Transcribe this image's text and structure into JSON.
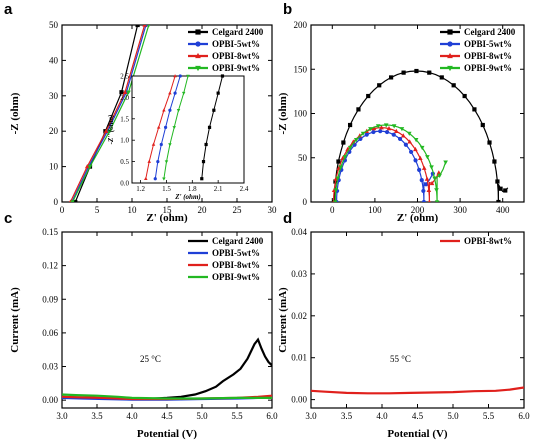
{
  "chart_data": [
    {
      "panel": "a",
      "type": "line",
      "xlabel": "Z' (ohm)",
      "ylabel": "-Z (ohm)",
      "xlim": [
        0,
        30
      ],
      "ylim": [
        0,
        50
      ],
      "xticks": [
        0,
        5,
        10,
        15,
        20,
        25,
        30
      ],
      "yticks": [
        0,
        10,
        20,
        30,
        40,
        50
      ],
      "legend": "top-right",
      "series": [
        {
          "name": "Celgard 2400",
          "color": "#000000",
          "marker": "square",
          "x": [
            1.9,
            4.0,
            6.2,
            8.5,
            10.8
          ],
          "y": [
            0,
            10,
            20,
            31,
            50
          ]
        },
        {
          "name": "OPBI-5wt%",
          "color": "#1f3fd6",
          "marker": "circle",
          "x": [
            1.4,
            3.8,
            6.5,
            9.2,
            12.0
          ],
          "y": [
            0,
            10,
            20,
            31,
            50
          ]
        },
        {
          "name": "OPBI-8wt%",
          "color": "#e0201c",
          "marker": "triangle-up",
          "x": [
            1.2,
            3.6,
            6.3,
            9.0,
            11.8
          ],
          "y": [
            0,
            10,
            20,
            31,
            50
          ]
        },
        {
          "name": "OPBI-9wt%",
          "color": "#22b822",
          "marker": "triangle-down",
          "x": [
            1.5,
            4.0,
            6.8,
            9.5,
            12.4
          ],
          "y": [
            0,
            10,
            20,
            31,
            50
          ]
        }
      ],
      "inset": {
        "xlabel": "Z' (ohm)",
        "ylabel": "-Z'' (ohm)",
        "xlim": [
          1.1,
          2.4
        ],
        "ylim": [
          0,
          2.5
        ],
        "xticks": [
          1.2,
          1.5,
          1.8,
          2.1,
          2.4
        ],
        "yticks": [
          0.0,
          0.5,
          1.0,
          1.5,
          2.0,
          2.5
        ],
        "series": [
          {
            "name": "Celgard 2400",
            "x": [
              1.91,
              1.93,
              1.96,
              2.0,
              2.05,
              2.1,
              2.15
            ],
            "y": [
              0.1,
              0.5,
              0.9,
              1.3,
              1.7,
              2.1,
              2.5
            ]
          },
          {
            "name": "OPBI-5wt%",
            "x": [
              1.37,
              1.4,
              1.44,
              1.49,
              1.54,
              1.6,
              1.66
            ],
            "y": [
              0.1,
              0.5,
              0.9,
              1.3,
              1.7,
              2.1,
              2.5
            ]
          },
          {
            "name": "OPBI-8wt%",
            "x": [
              1.26,
              1.3,
              1.35,
              1.41,
              1.47,
              1.54,
              1.6
            ],
            "y": [
              0.1,
              0.5,
              0.9,
              1.3,
              1.7,
              2.1,
              2.5
            ]
          },
          {
            "name": "OPBI-9wt%",
            "x": [
              1.47,
              1.5,
              1.54,
              1.59,
              1.64,
              1.7,
              1.75
            ],
            "y": [
              0.1,
              0.5,
              0.9,
              1.3,
              1.7,
              2.1,
              2.5
            ]
          }
        ]
      }
    },
    {
      "panel": "b",
      "type": "line",
      "xlabel": "Z' (ohm)",
      "ylabel": "-Z (ohm)",
      "xlim": [
        -50,
        450
      ],
      "ylim": [
        0,
        200
      ],
      "xticks": [
        0,
        100,
        200,
        300,
        400
      ],
      "yticks": [
        0,
        50,
        100,
        150,
        200
      ],
      "legend": "top-right",
      "series": [
        {
          "name": "Celgard 2400",
          "color": "#000000",
          "marker": "square",
          "arc": {
            "x0": 5,
            "x1": 390,
            "h": 148
          },
          "tail": {
            "x": [
              390,
              395,
              400,
              406,
              412
            ],
            "y": [
              20,
              15,
              12,
              13,
              16
            ]
          }
        },
        {
          "name": "OPBI-5wt%",
          "color": "#1f3fd6",
          "marker": "circle",
          "arc": {
            "x0": 10,
            "x1": 215,
            "h": 80
          },
          "tail": {
            "x": [
              215,
              220,
              228,
              236
            ],
            "y": [
              22,
              20,
              25,
              32
            ]
          }
        },
        {
          "name": "OPBI-8wt%",
          "color": "#e0201c",
          "marker": "triangle-up",
          "arc": {
            "x0": 3,
            "x1": 228,
            "h": 84
          },
          "tail": {
            "x": [
              228,
              234,
              242,
              250
            ],
            "y": [
              22,
              21,
              26,
              33
            ]
          }
        },
        {
          "name": "OPBI-9wt%",
          "color": "#22b822",
          "marker": "triangle-down",
          "arc": {
            "x0": 7,
            "x1": 246,
            "h": 87
          },
          "tail": {
            "x": [
              246,
              252,
              260,
              266
            ],
            "y": [
              28,
              30,
              37,
              45
            ]
          }
        }
      ]
    },
    {
      "panel": "c",
      "type": "line",
      "xlabel": "Potential (V)",
      "ylabel": "Current (mA)",
      "xlim": [
        3.0,
        6.0
      ],
      "ylim": [
        -0.007,
        0.15
      ],
      "xticks": [
        3.0,
        3.5,
        4.0,
        4.5,
        5.0,
        5.5,
        6.0
      ],
      "yticks": [
        0.0,
        0.03,
        0.06,
        0.09,
        0.12,
        0.15
      ],
      "legend": "top-right",
      "annotation": "25 °C",
      "series": [
        {
          "name": "Celgard 2400",
          "color": "#000000",
          "x": [
            3.0,
            3.3,
            3.6,
            3.9,
            4.2,
            4.5,
            4.7,
            4.9,
            5.05,
            5.2,
            5.3,
            5.45,
            5.55,
            5.65,
            5.75,
            5.8,
            5.85,
            5.9,
            5.95,
            6.0
          ],
          "y": [
            0.003,
            0.002,
            0.0015,
            0.001,
            0.001,
            0.002,
            0.003,
            0.005,
            0.008,
            0.012,
            0.017,
            0.023,
            0.028,
            0.037,
            0.05,
            0.054,
            0.046,
            0.039,
            0.034,
            0.031
          ]
        },
        {
          "name": "OPBI-5wt%",
          "color": "#1f3fd6",
          "x": [
            3.0,
            3.3,
            3.6,
            4.0,
            4.5,
            5.0,
            5.5,
            5.8,
            6.0
          ],
          "y": [
            0.002,
            0.0015,
            0.001,
            0.0005,
            0.0005,
            0.001,
            0.0015,
            0.002,
            0.003
          ]
        },
        {
          "name": "OPBI-8wt%",
          "color": "#e0201c",
          "x": [
            3.0,
            3.3,
            3.6,
            4.0,
            4.5,
            5.0,
            5.5,
            5.8,
            6.0
          ],
          "y": [
            0.003,
            0.0025,
            0.002,
            0.001,
            0.001,
            0.0015,
            0.002,
            0.003,
            0.004
          ]
        },
        {
          "name": "OPBI-9wt%",
          "color": "#22b822",
          "x": [
            3.0,
            3.2,
            3.5,
            3.8,
            4.0,
            4.5,
            5.0,
            5.5,
            6.0
          ],
          "y": [
            0.005,
            0.0045,
            0.004,
            0.003,
            0.002,
            0.0015,
            0.0015,
            0.002,
            0.002
          ]
        }
      ]
    },
    {
      "panel": "d",
      "type": "line",
      "xlabel": "Potential (V)",
      "ylabel": "Current (mA)",
      "xlim": [
        3.0,
        6.0
      ],
      "ylim": [
        -0.002,
        0.04
      ],
      "xticks": [
        3.0,
        3.5,
        4.0,
        4.5,
        5.0,
        5.5,
        6.0
      ],
      "yticks": [
        0.0,
        0.01,
        0.02,
        0.03,
        0.04
      ],
      "legend": "top-right",
      "annotation": "55 °C",
      "series": [
        {
          "name": "OPBI-8wt%",
          "color": "#e0201c",
          "x": [
            3.0,
            3.2,
            3.5,
            3.8,
            4.1,
            4.4,
            4.7,
            5.0,
            5.3,
            5.6,
            5.8,
            6.0
          ],
          "y": [
            0.0021,
            0.0019,
            0.0016,
            0.0015,
            0.0015,
            0.0016,
            0.0017,
            0.0018,
            0.002,
            0.0021,
            0.0024,
            0.0029
          ]
        }
      ]
    }
  ]
}
